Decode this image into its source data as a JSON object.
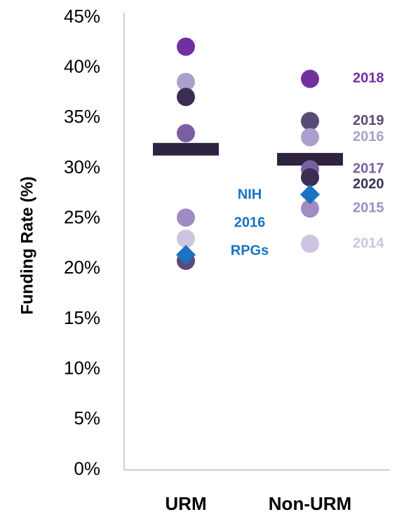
{
  "chart_data": {
    "type": "dot",
    "ylabel": "Funding Rate (%)",
    "categories": [
      "URM",
      "Non-URM"
    ],
    "ylim": [
      0,
      45
    ],
    "yticks": [
      {
        "value": 0,
        "label": "0%"
      },
      {
        "value": 5,
        "label": "5%"
      },
      {
        "value": 10,
        "label": "10%"
      },
      {
        "value": 15,
        "label": "15%"
      },
      {
        "value": 20,
        "label": "20%"
      },
      {
        "value": 25,
        "label": "25%"
      },
      {
        "value": 30,
        "label": "30%"
      },
      {
        "value": 35,
        "label": "35%"
      },
      {
        "value": 40,
        "label": "40%"
      },
      {
        "value": 45,
        "label": "45%"
      }
    ],
    "series": [
      {
        "name": "2018",
        "color": "#7030a0",
        "values": [
          42.1,
          38.9
        ]
      },
      {
        "name": "2019",
        "color": "#5a4a78",
        "values": [
          20.8,
          34.7
        ]
      },
      {
        "name": "2016",
        "color": "#ab9fcb",
        "values": [
          38.6,
          33.1
        ]
      },
      {
        "name": "2017",
        "color": "#7b5fa3",
        "values": [
          33.5,
          29.9
        ]
      },
      {
        "name": "2020",
        "color": "#3b2e52",
        "values": [
          37.1,
          29.1
        ]
      },
      {
        "name": "2015",
        "color": "#a08cc2",
        "values": [
          25.1,
          26.0
        ]
      },
      {
        "name": "2014",
        "color": "#cdc5e0",
        "values": [
          23.0,
          22.5
        ]
      }
    ],
    "means": [
      31.9,
      30.9
    ],
    "means_color": "#2e2440",
    "nih_values": [
      21.4,
      27.4
    ],
    "nih_color": "#1a73c0",
    "nih_label": [
      "NIH",
      "2016",
      "RPGs"
    ]
  }
}
